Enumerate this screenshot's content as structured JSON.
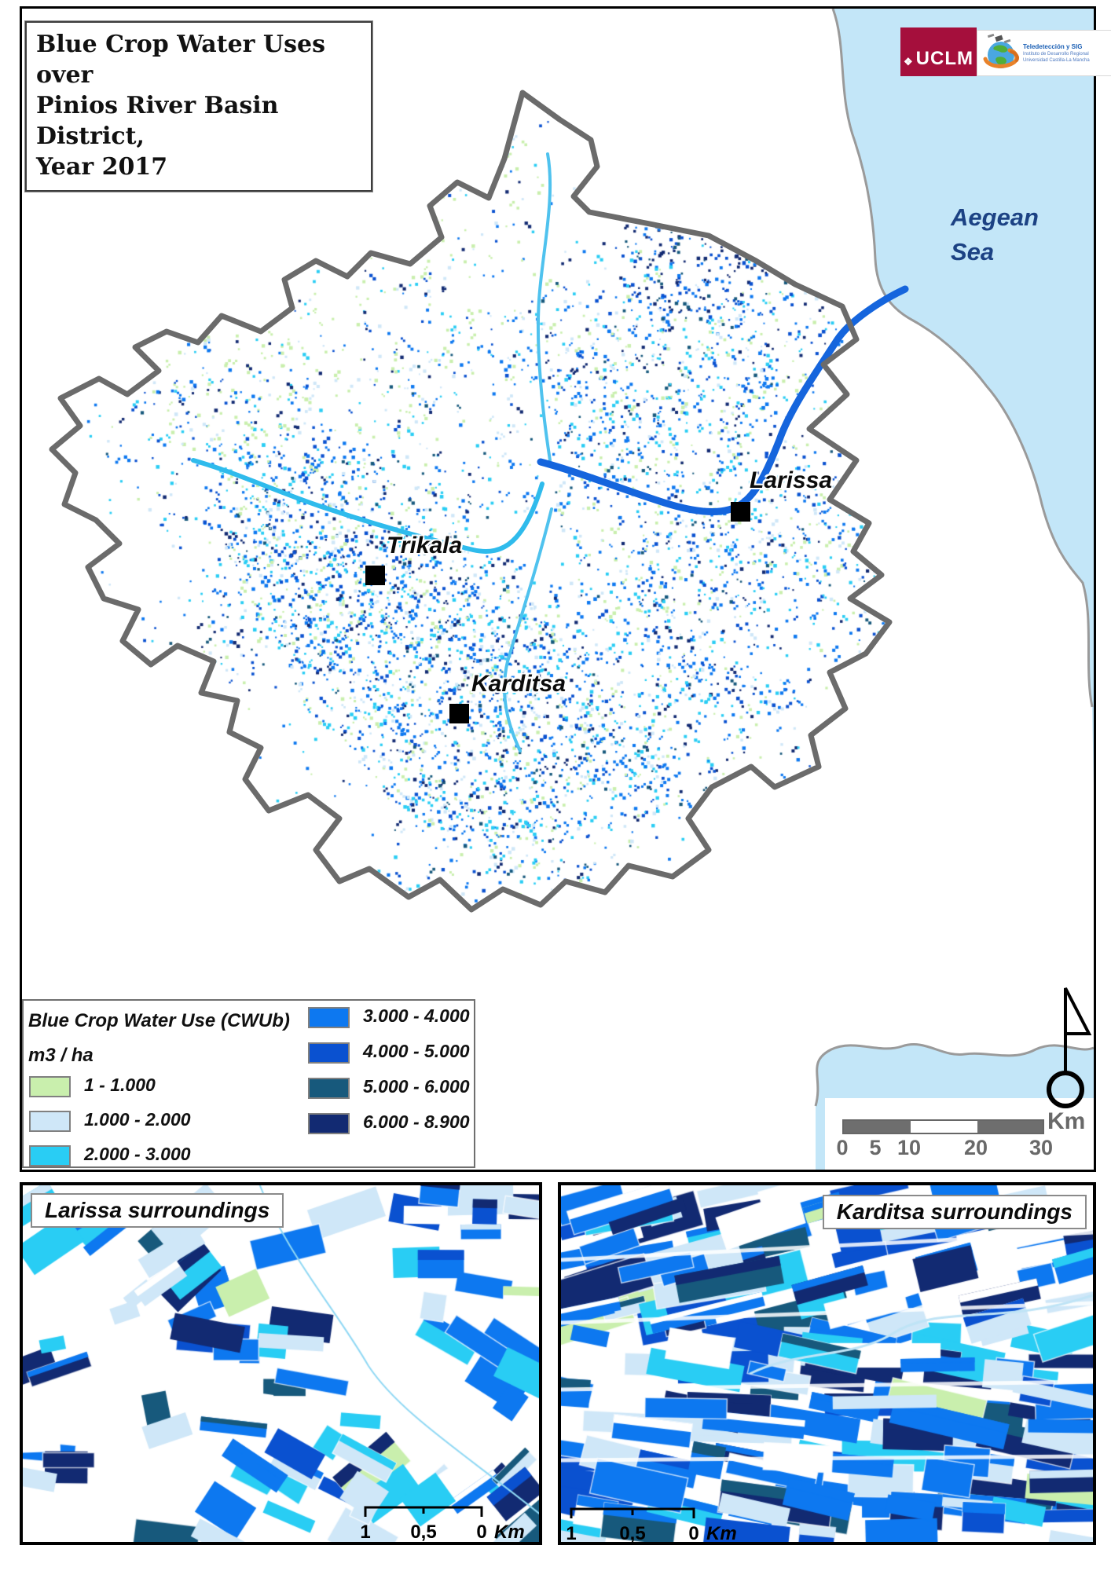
{
  "title": {
    "line1": "Blue Crop Water Uses over",
    "line2": "Pinios River Basin District,",
    "line3": "Year 2017"
  },
  "logos": {
    "uclm": {
      "label": "UCLM",
      "bg": "#a50f3c"
    },
    "ids": {
      "line1": "Teledetección y SIG",
      "line2": "Instituto de Desarrollo Regional",
      "line3": "Universidad Castilla-La Mancha"
    }
  },
  "sea": {
    "line1": "Aegean",
    "line2": "Sea"
  },
  "cities": [
    {
      "name": "Trikala"
    },
    {
      "name": "Karditsa"
    },
    {
      "name": "Larissa"
    }
  ],
  "legend": {
    "title_line1": "Blue Crop Water Use (CWUb)",
    "title_line2": "m3 / ha",
    "classes": [
      {
        "label": "1 - 1.000",
        "color": "#c9efad"
      },
      {
        "label": "1.000 - 2.000",
        "color": "#cfe7f8"
      },
      {
        "label": "2.000 - 3.000",
        "color": "#29cdf4"
      },
      {
        "label": "3.000 - 4.000",
        "color": "#0d78f0"
      },
      {
        "label": "4.000 - 5.000",
        "color": "#0a51d0"
      },
      {
        "label": "5.000 - 6.000",
        "color": "#17597c"
      },
      {
        "label": "6.000 - 8.900",
        "color": "#122a72"
      }
    ]
  },
  "scalebar": {
    "ticks": [
      "0",
      "5",
      "10",
      "20",
      "30"
    ],
    "unit": "Km"
  },
  "insets": [
    {
      "title": "Larissa surroundings",
      "scale": [
        "1",
        "0,5",
        "0"
      ],
      "unit": "Km"
    },
    {
      "title": "Karditsa surroundings",
      "scale": [
        "1",
        "0,5",
        "0"
      ],
      "unit": "Km"
    }
  ],
  "map_colors": {
    "sea": "#c3e6f8",
    "coast": "#9a9a9a",
    "basin_border": "#6b6b6b",
    "river_main": "#1565dd",
    "river_light": "#2fbbec",
    "river_trib": "#4fc2ee"
  }
}
